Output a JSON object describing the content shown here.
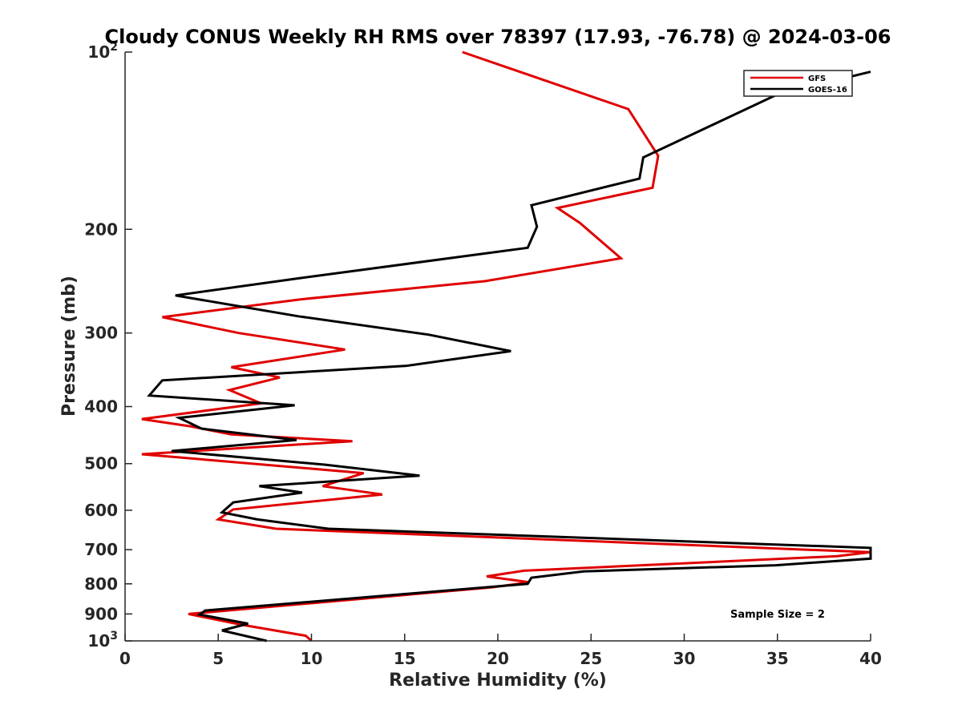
{
  "chart_data": {
    "type": "line",
    "title": "Cloudy CONUS Weekly RH RMS over 78397 (17.93, -76.78) @ 2024-03-06",
    "xlabel": "Relative Humidity (%)",
    "ylabel": "Pressure (mb)",
    "xlim": [
      0,
      40
    ],
    "ylim": [
      100,
      1000
    ],
    "y_scale": "log",
    "y_reversed": true,
    "x_ticks": [
      "0",
      "5",
      "10",
      "15",
      "20",
      "25",
      "30",
      "35",
      "40"
    ],
    "y_ticks": [
      {
        "value": 100,
        "label": "10",
        "sup": "2"
      },
      {
        "value": 200,
        "label": "200",
        "sup": ""
      },
      {
        "value": 300,
        "label": "300",
        "sup": ""
      },
      {
        "value": 400,
        "label": "400",
        "sup": ""
      },
      {
        "value": 500,
        "label": "500",
        "sup": ""
      },
      {
        "value": 600,
        "label": "600",
        "sup": ""
      },
      {
        "value": 700,
        "label": "700",
        "sup": ""
      },
      {
        "value": 800,
        "label": "800",
        "sup": ""
      },
      {
        "value": 900,
        "label": "900",
        "sup": ""
      },
      {
        "value": 1000,
        "label": "10",
        "sup": "3"
      }
    ],
    "legend_position": "top-right",
    "annotation": "Sample Size = 2",
    "series": [
      {
        "name": "GFS",
        "color": "#e00000",
        "points": [
          [
            18.1,
            100
          ],
          [
            27.0,
            125
          ],
          [
            28.6,
            150
          ],
          [
            28.3,
            170
          ],
          [
            23.2,
            184
          ],
          [
            24.4,
            195
          ],
          [
            26.6,
            224
          ],
          [
            19.3,
            245
          ],
          [
            9.4,
            263
          ],
          [
            2.0,
            282
          ],
          [
            6.1,
            300
          ],
          [
            11.8,
            320
          ],
          [
            5.7,
            343
          ],
          [
            8.3,
            357
          ],
          [
            5.6,
            375
          ],
          [
            7.3,
            395
          ],
          [
            0.9,
            420
          ],
          [
            3.5,
            432
          ],
          [
            5.7,
            446
          ],
          [
            12.2,
            458
          ],
          [
            0.9,
            482
          ],
          [
            12.8,
            519
          ],
          [
            10.6,
            546
          ],
          [
            13.8,
            564
          ],
          [
            5.8,
            598
          ],
          [
            5.0,
            622
          ],
          [
            8.1,
            645
          ],
          [
            40.0,
            707
          ],
          [
            38.2,
            718
          ],
          [
            21.4,
            760
          ],
          [
            19.4,
            777
          ],
          [
            21.7,
            795
          ],
          [
            19.7,
            811
          ],
          [
            3.4,
            900
          ],
          [
            6.2,
            938
          ],
          [
            9.7,
            980
          ],
          [
            10.0,
            1000
          ]
        ]
      },
      {
        "name": "GOES-16",
        "color": "#000000",
        "points": [
          [
            40.0,
            108
          ],
          [
            35.0,
            118
          ],
          [
            27.8,
            151
          ],
          [
            27.6,
            164
          ],
          [
            21.8,
            182
          ],
          [
            22.1,
            198
          ],
          [
            21.6,
            215
          ],
          [
            9.4,
            242
          ],
          [
            2.7,
            259
          ],
          [
            9.3,
            281
          ],
          [
            16.3,
            302
          ],
          [
            20.7,
            322
          ],
          [
            15.1,
            341
          ],
          [
            2.0,
            361
          ],
          [
            1.3,
            383
          ],
          [
            9.1,
            398
          ],
          [
            2.9,
            418
          ],
          [
            4.1,
            436
          ],
          [
            9.2,
            456
          ],
          [
            2.5,
            476
          ],
          [
            10.7,
            502
          ],
          [
            15.8,
            524
          ],
          [
            7.2,
            546
          ],
          [
            9.5,
            560
          ],
          [
            5.8,
            582
          ],
          [
            5.2,
            605
          ],
          [
            7.1,
            622
          ],
          [
            10.9,
            645
          ],
          [
            40.0,
            695
          ],
          [
            40.0,
            725
          ],
          [
            34.9,
            744
          ],
          [
            24.6,
            762
          ],
          [
            21.8,
            781
          ],
          [
            21.6,
            800
          ],
          [
            4.3,
            888
          ],
          [
            4.0,
            902
          ],
          [
            6.6,
            935
          ],
          [
            5.2,
            960
          ],
          [
            7.6,
            1000
          ]
        ]
      }
    ]
  }
}
